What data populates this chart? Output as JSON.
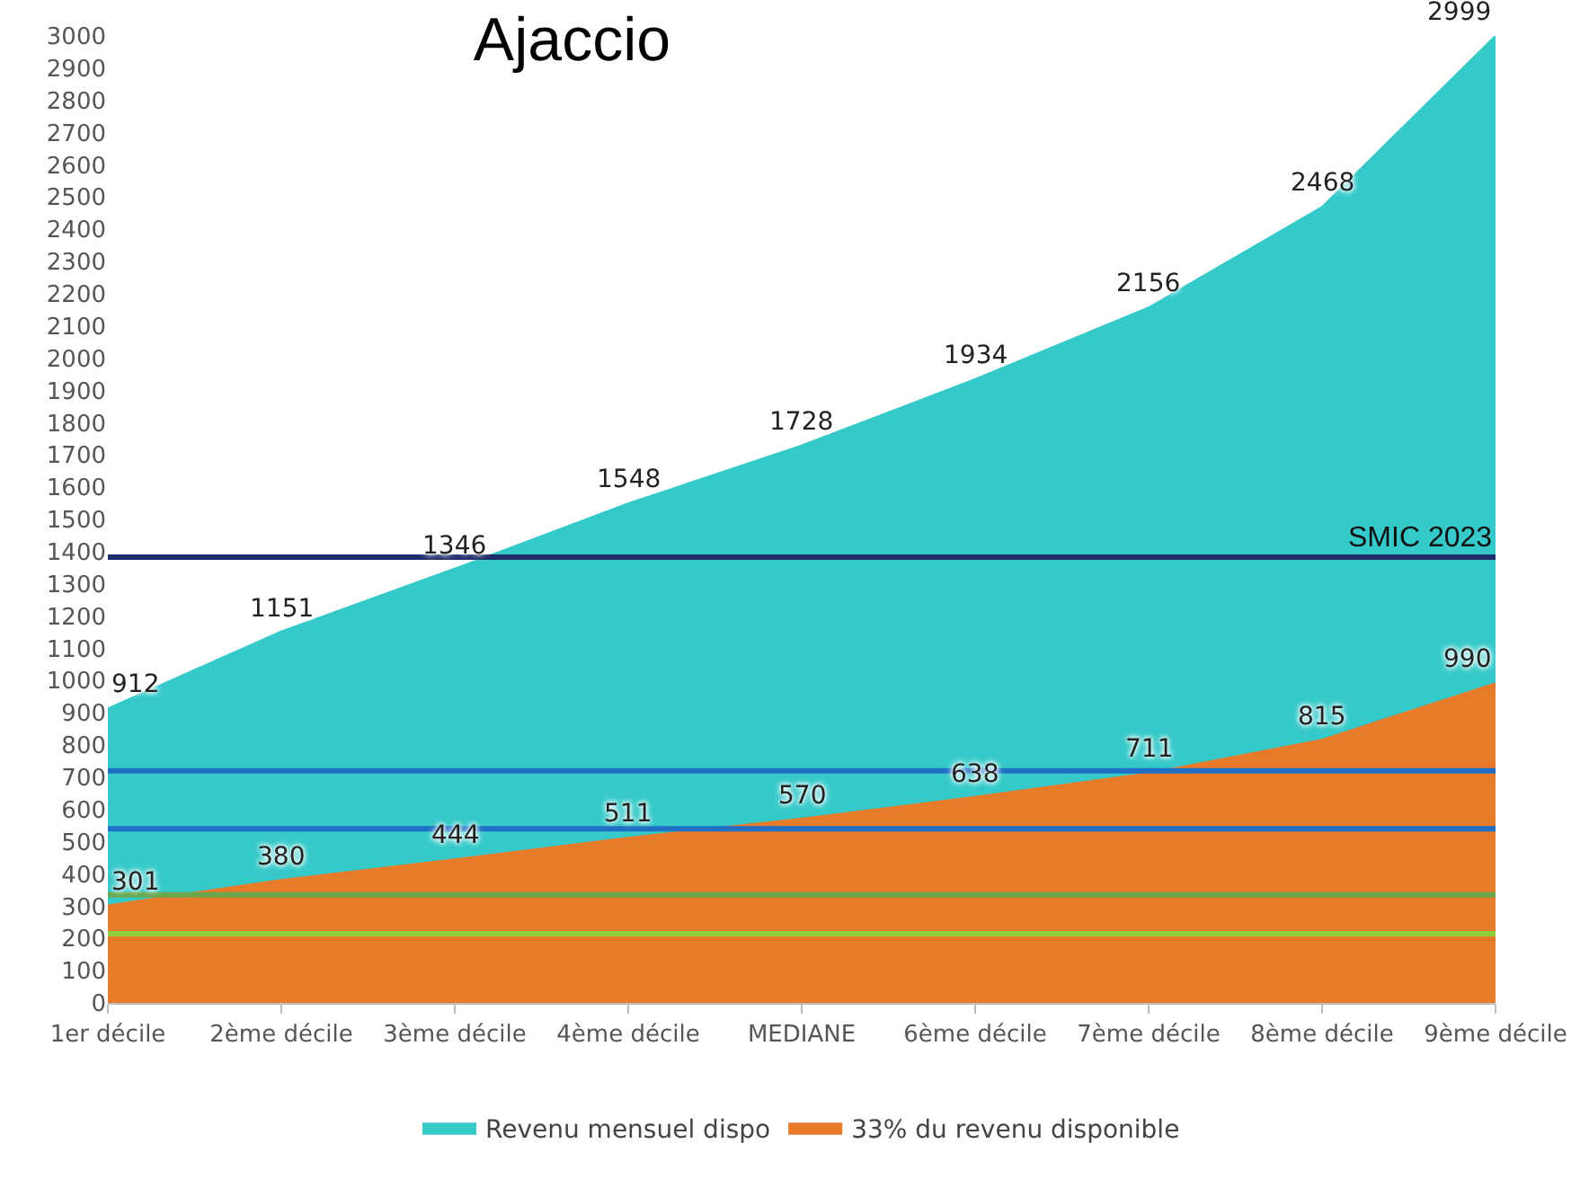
{
  "chart_data": {
    "type": "area",
    "title": "Ajaccio",
    "categories": [
      "1er décile",
      "2ème décile",
      "3ème décile",
      "4ème décile",
      "MEDIANE",
      "6ème décile",
      "7ème décile",
      "8ème décile",
      "9ème décile"
    ],
    "series": [
      {
        "name": "Revenu mensuel dispo",
        "color": "#35c9c9",
        "values": [
          912,
          1151,
          1346,
          1548,
          1728,
          1934,
          2156,
          2468,
          2999
        ]
      },
      {
        "name": "33% du revenu disponible",
        "color": "#e87b2a",
        "values": [
          301,
          380,
          444,
          511,
          570,
          638,
          711,
          815,
          990
        ]
      }
    ],
    "ylim": [
      0,
      3000
    ],
    "yticks": [
      0,
      100,
      200,
      300,
      400,
      500,
      600,
      700,
      800,
      900,
      1000,
      1100,
      1200,
      1300,
      1400,
      1500,
      1600,
      1700,
      1800,
      1900,
      2000,
      2100,
      2200,
      2300,
      2400,
      2500,
      2600,
      2700,
      2800,
      2900,
      3000
    ],
    "grid": false,
    "legend": "bottom",
    "data_labels": true,
    "ref_lines": [
      {
        "axis": "y",
        "value": 1383,
        "label": "SMIC 2023",
        "color": "#1f2d6b"
      },
      {
        "axis": "y",
        "value": 720,
        "color": "#1f6fc4"
      },
      {
        "axis": "y",
        "value": 540,
        "color": "#1f6fc4"
      },
      {
        "axis": "y",
        "value": 335,
        "color": "#6aa84f"
      },
      {
        "axis": "y",
        "value": 215,
        "color": "#8fcf3c"
      }
    ]
  }
}
